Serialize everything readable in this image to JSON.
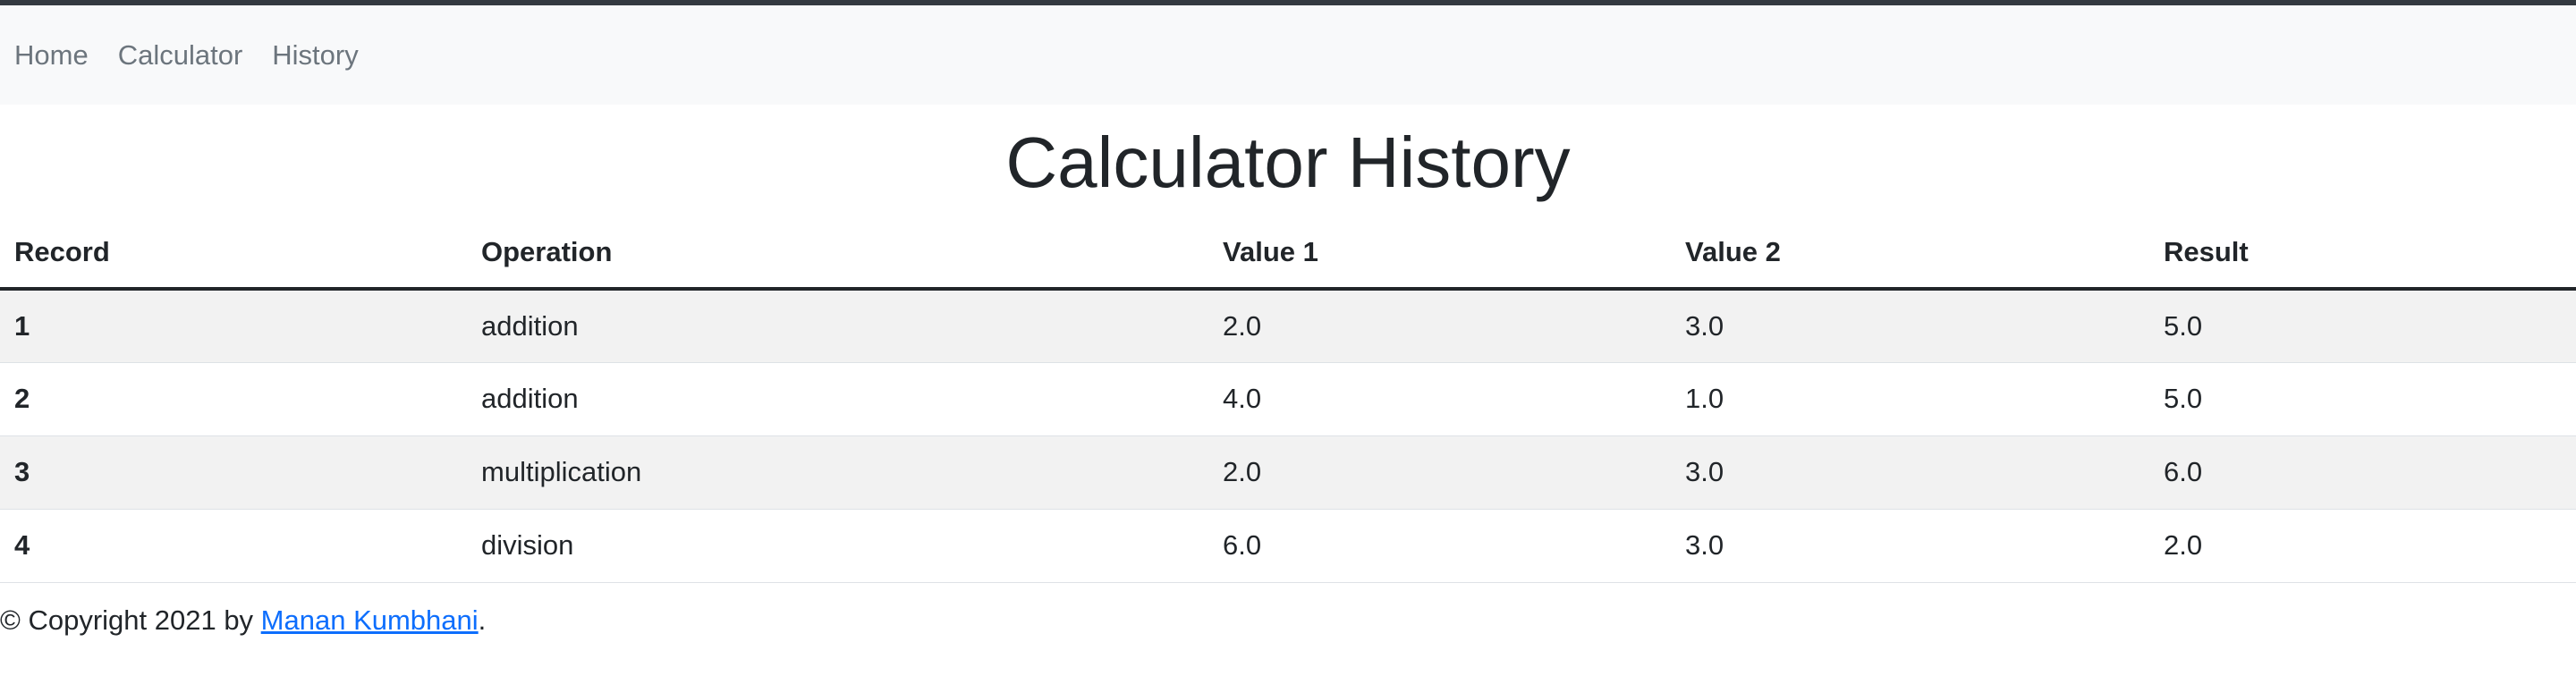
{
  "nav": {
    "items": [
      {
        "label": "Home"
      },
      {
        "label": "Calculator"
      },
      {
        "label": "History"
      }
    ]
  },
  "page": {
    "title": "Calculator History"
  },
  "table": {
    "headers": [
      "Record",
      "Operation",
      "Value 1",
      "Value 2",
      "Result"
    ],
    "rows": [
      {
        "record": "1",
        "operation": "addition",
        "value1": "2.0",
        "value2": "3.0",
        "result": "5.0"
      },
      {
        "record": "2",
        "operation": "addition",
        "value1": "4.0",
        "value2": "1.0",
        "result": "5.0"
      },
      {
        "record": "3",
        "operation": "multiplication",
        "value1": "2.0",
        "value2": "3.0",
        "result": "6.0"
      },
      {
        "record": "4",
        "operation": "division",
        "value1": "6.0",
        "value2": "3.0",
        "result": "2.0"
      }
    ]
  },
  "footer": {
    "prefix": "© Copyright 2021 by ",
    "author_link": "Manan Kumbhani",
    "suffix": "."
  }
}
